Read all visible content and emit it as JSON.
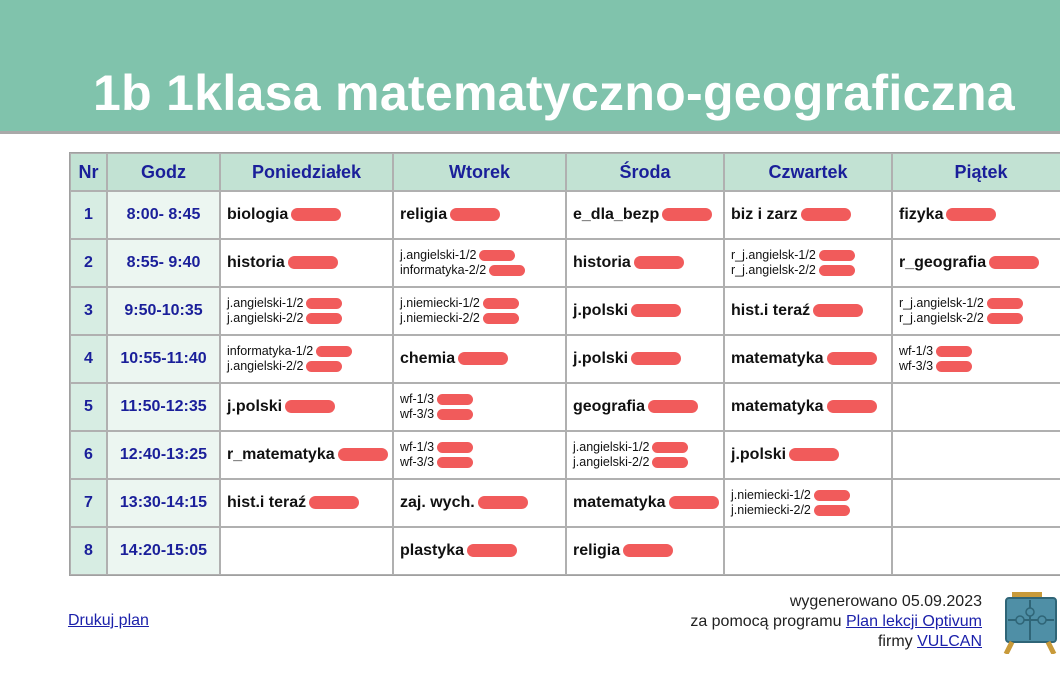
{
  "title": "1b 1klasa matematyczno-geograficzna",
  "table": {
    "headers": [
      "Nr",
      "Godz",
      "Poniedziałek",
      "Wtorek",
      "Środa",
      "Czwartek",
      "Piątek"
    ],
    "rows": [
      {
        "nr": "1",
        "godz": "8:00- 8:45",
        "days": [
          [
            "biologia"
          ],
          [
            "religia"
          ],
          [
            "e_dla_bezp"
          ],
          [
            "biz i zarz"
          ],
          [
            "fizyka"
          ]
        ]
      },
      {
        "nr": "2",
        "godz": "8:55- 9:40",
        "days": [
          [
            "historia"
          ],
          [
            "j.angielski-1/2",
            "informatyka-2/2"
          ],
          [
            "historia"
          ],
          [
            "r_j.angielsk-1/2",
            "r_j.angielsk-2/2"
          ],
          [
            "r_geografia"
          ]
        ]
      },
      {
        "nr": "3",
        "godz": "9:50-10:35",
        "days": [
          [
            "j.angielski-1/2",
            "j.angielski-2/2"
          ],
          [
            "j.niemiecki-1/2",
            "j.niemiecki-2/2"
          ],
          [
            "j.polski"
          ],
          [
            "hist.i teraź"
          ],
          [
            "r_j.angielsk-1/2",
            "r_j.angielsk-2/2"
          ]
        ]
      },
      {
        "nr": "4",
        "godz": "10:55-11:40",
        "days": [
          [
            "informatyka-1/2",
            "j.angielski-2/2"
          ],
          [
            "chemia"
          ],
          [
            "j.polski"
          ],
          [
            "matematyka"
          ],
          [
            "wf-1/3",
            "wf-3/3"
          ]
        ]
      },
      {
        "nr": "5",
        "godz": "11:50-12:35",
        "days": [
          [
            "j.polski"
          ],
          [
            "wf-1/3",
            "wf-3/3"
          ],
          [
            "geografia"
          ],
          [
            "matematyka"
          ],
          []
        ]
      },
      {
        "nr": "6",
        "godz": "12:40-13:25",
        "days": [
          [
            "r_matematyka"
          ],
          [
            "wf-1/3",
            "wf-3/3"
          ],
          [
            "j.angielski-1/2",
            "j.angielski-2/2"
          ],
          [
            "j.polski"
          ],
          []
        ]
      },
      {
        "nr": "7",
        "godz": "13:30-14:15",
        "days": [
          [
            "hist.i teraź"
          ],
          [
            "zaj. wych."
          ],
          [
            "matematyka"
          ],
          [
            "j.niemiecki-1/2",
            "j.niemiecki-2/2"
          ],
          []
        ]
      },
      {
        "nr": "8",
        "godz": "14:20-15:05",
        "days": [
          [],
          [
            "plastyka"
          ],
          [
            "religia"
          ],
          [],
          []
        ]
      }
    ]
  },
  "footer": {
    "print_link": "Drukuj plan",
    "generated": "wygenerowano 05.09.2023",
    "by_program": "za pomocą programu",
    "program_link": "Plan lekcji Optivum",
    "company_prefix": "firmy",
    "company_link": "VULCAN"
  },
  "colors": {
    "banner": "#80c3ac",
    "header_text": "#1a1f9a",
    "redaction": "#f05252"
  },
  "icons": {
    "logo": "puzzle-easel-icon"
  }
}
